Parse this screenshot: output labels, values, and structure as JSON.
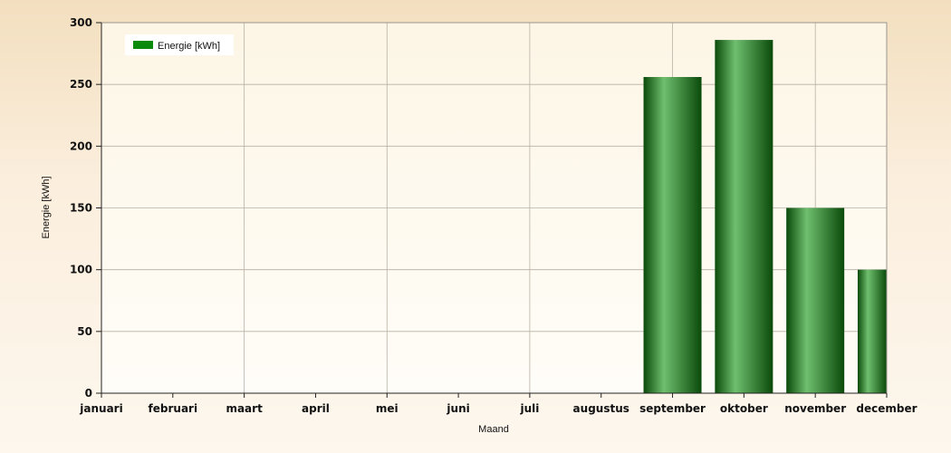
{
  "chart_data": {
    "type": "bar",
    "categories": [
      "januari",
      "februari",
      "maart",
      "april",
      "mei",
      "juni",
      "juli",
      "augustus",
      "september",
      "oktober",
      "november",
      "december"
    ],
    "series": [
      {
        "name": "Energie [kWh]",
        "values": [
          0,
          0,
          0,
          0,
          0,
          0,
          0,
          0,
          256,
          286,
          150,
          100
        ]
      }
    ],
    "xlabel": "Maand",
    "ylabel": "Energie [kWh]",
    "ylim": [
      0,
      300
    ],
    "yticks": [
      0,
      50,
      100,
      150,
      200,
      250,
      300
    ],
    "grid": true,
    "legend_position": "top-left",
    "colors": {
      "bar_dark": "#0a4a0a",
      "bar_light": "#6fbf6f",
      "legend_swatch": "#0a8a0a",
      "plot_bg_top": "#fdf6e6",
      "plot_bg_bottom": "#fffdf8",
      "grid": "#b8b0a4"
    }
  }
}
